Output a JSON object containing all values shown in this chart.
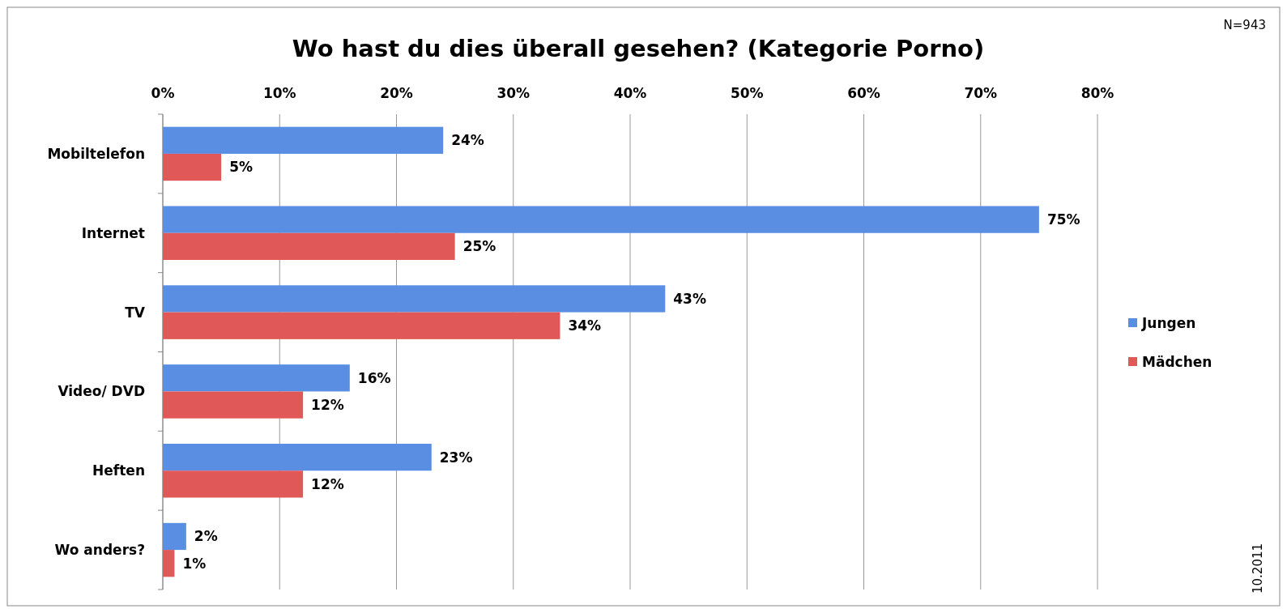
{
  "chart_data": {
    "type": "bar",
    "orientation": "horizontal",
    "title": "Wo hast du dies überall gesehen? (Kategorie Porno)",
    "categories": [
      "Mobiltelefon",
      "Internet",
      "TV",
      "Video/ DVD",
      "Heften",
      "Wo anders?"
    ],
    "series": [
      {
        "name": "Jungen",
        "color": "#5a8ee3",
        "values": [
          24,
          75,
          43,
          16,
          23,
          2
        ],
        "value_labels": [
          "24%",
          "75%",
          "43%",
          "16%",
          "23%",
          "2%"
        ]
      },
      {
        "name": "Mädchen",
        "color": "#e05858",
        "values": [
          5,
          25,
          34,
          12,
          12,
          1
        ],
        "value_labels": [
          "5%",
          "25%",
          "34%",
          "12%",
          "12%",
          "1%"
        ]
      }
    ],
    "xlim": [
      0,
      80
    ],
    "xticks": [
      {
        "value": 0,
        "label": "0%"
      },
      {
        "value": 10,
        "label": "10%"
      },
      {
        "value": 20,
        "label": "20%"
      },
      {
        "value": 30,
        "label": "30%"
      },
      {
        "value": 40,
        "label": "40%"
      },
      {
        "value": 50,
        "label": "50%"
      },
      {
        "value": 60,
        "label": "60%"
      },
      {
        "value": 70,
        "label": "70%"
      },
      {
        "value": 80,
        "label": "80%"
      }
    ],
    "grid": "x",
    "legend": "right",
    "annotations": [
      "N=943",
      "10.2011"
    ]
  }
}
